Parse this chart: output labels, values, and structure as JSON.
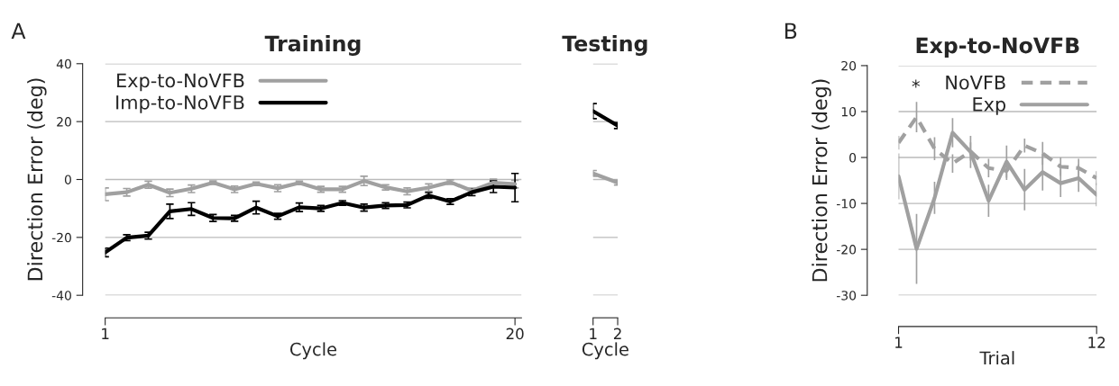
{
  "chart_data": [
    {
      "type": "line",
      "title": "Training",
      "xlabel": "Cycle",
      "ylabel": "Direction Error (deg)",
      "annotations": [
        "A"
      ],
      "x": [
        1,
        2,
        3,
        4,
        5,
        6,
        7,
        8,
        9,
        10,
        11,
        12,
        13,
        14,
        15,
        16,
        17,
        18,
        19,
        20
      ],
      "xlim": [
        1,
        20.3
      ],
      "xticks": [
        1,
        20
      ],
      "ylim": [
        -40,
        40
      ],
      "yticks": [
        -40,
        -20,
        0,
        20,
        40
      ],
      "grid": "y",
      "legend": "top left",
      "marker": "none",
      "series": [
        {
          "name": "Exp-to-NoVFB",
          "color": "#a0a0a0",
          "values": [
            -5.1,
            -4.4,
            -1.8,
            -4.6,
            -3.2,
            -1.1,
            -3.4,
            -1.5,
            -3.0,
            -1.2,
            -3.4,
            -3.4,
            -0.5,
            -2.7,
            -4.1,
            -2.8,
            -0.9,
            -3.9,
            -1.1,
            -1.6
          ],
          "errors": [
            2.2,
            1.3,
            1.2,
            1.3,
            1.3,
            0.6,
            1.1,
            0.6,
            1.2,
            0.6,
            1.0,
            1.0,
            1.6,
            0.9,
            1.2,
            1.3,
            0.8,
            0.9,
            1.2,
            1.3
          ]
        },
        {
          "name": "Imp-to-NoVFB",
          "color": "#000000",
          "values": [
            -25.2,
            -20.1,
            -19.4,
            -11.0,
            -10.2,
            -13.3,
            -13.4,
            -9.7,
            -12.7,
            -9.6,
            -10.0,
            -8.1,
            -9.7,
            -9.0,
            -8.8,
            -5.5,
            -7.6,
            -4.4,
            -2.5,
            -2.8
          ],
          "errors": [
            1.5,
            1.0,
            1.2,
            2.5,
            2.2,
            1.2,
            1.0,
            2.2,
            1.0,
            1.5,
            1.0,
            0.8,
            1.2,
            1.0,
            1.0,
            1.0,
            1.0,
            1.2,
            2.0,
            4.9
          ]
        }
      ]
    },
    {
      "type": "line",
      "title": "Testing",
      "xlabel": "Cycle",
      "x": [
        1,
        2
      ],
      "xlim": [
        1,
        2
      ],
      "xticks": [
        1,
        2
      ],
      "ylim": [
        -40,
        40
      ],
      "yticks": [
        -40,
        -20,
        0,
        20,
        40
      ],
      "grid": "y",
      "tick_labels": "x",
      "marker": "none",
      "series": [
        {
          "color": "#a0a0a0",
          "values": [
            2.1,
            -1.1
          ],
          "errors": [
            1.0,
            0.8
          ]
        },
        {
          "color": "#000000",
          "values": [
            23.6,
            18.6
          ],
          "errors": [
            2.6,
            1.0
          ]
        }
      ]
    },
    {
      "type": "line",
      "title": "Exp-to-NoVFB",
      "xlabel": "Trial",
      "ylabel": "Direction Error (deg)",
      "annotations": [
        "B",
        "*"
      ],
      "x": [
        1,
        2,
        3,
        4,
        5,
        6,
        7,
        8,
        9,
        10,
        11,
        12
      ],
      "xlim": [
        1,
        12
      ],
      "xticks": [
        1,
        12
      ],
      "ylim": [
        -30,
        20
      ],
      "yticks": [
        -30,
        -20,
        -10,
        0,
        10,
        20
      ],
      "grid": "y",
      "legend": "top right",
      "marker": "none",
      "series": [
        {
          "name": "NoVFB",
          "color": "#a0a0a0",
          "line_style": "dashed",
          "values": [
            3.2,
            8.8,
            1.9,
            -1.3,
            1.3,
            -2.3,
            -2.9,
            2.6,
            0.9,
            -2.0,
            -2.3,
            -4.5
          ],
          "errors": [
            1.5,
            3.3,
            2.5,
            2.0,
            2.0,
            2.0,
            2.0,
            1.5,
            2.5,
            2.0,
            2.0,
            1.5
          ]
        },
        {
          "name": "Exp",
          "color": "#a0a0a0",
          "line_style": "solid",
          "values": [
            -4.1,
            -19.9,
            -8.8,
            5.4,
            1.2,
            -9.4,
            -0.9,
            -7.0,
            -3.2,
            -5.6,
            -4.5,
            -8.1
          ],
          "errors": [
            5.0,
            7.6,
            3.5,
            3.2,
            3.5,
            3.5,
            3.5,
            4.5,
            4.0,
            3.0,
            3.0,
            2.5
          ]
        }
      ]
    }
  ]
}
